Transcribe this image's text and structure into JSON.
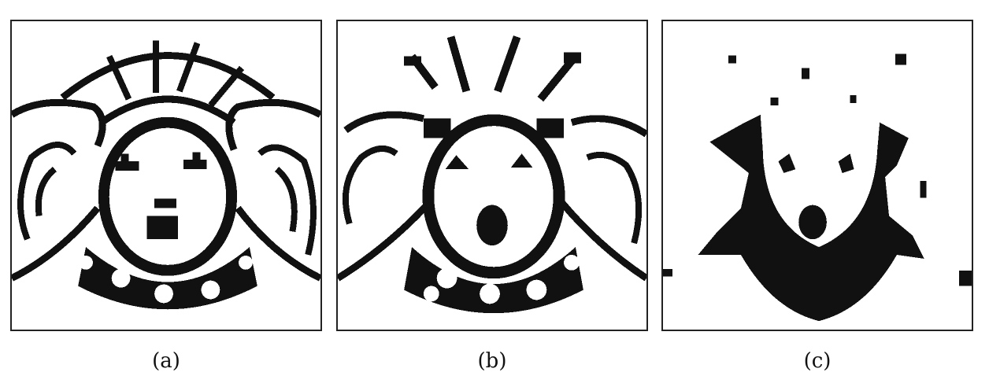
{
  "panels": [
    {
      "id": "a",
      "caption": "(a)"
    },
    {
      "id": "b",
      "caption": "(b)"
    },
    {
      "id": "c",
      "caption": "(c)"
    }
  ]
}
